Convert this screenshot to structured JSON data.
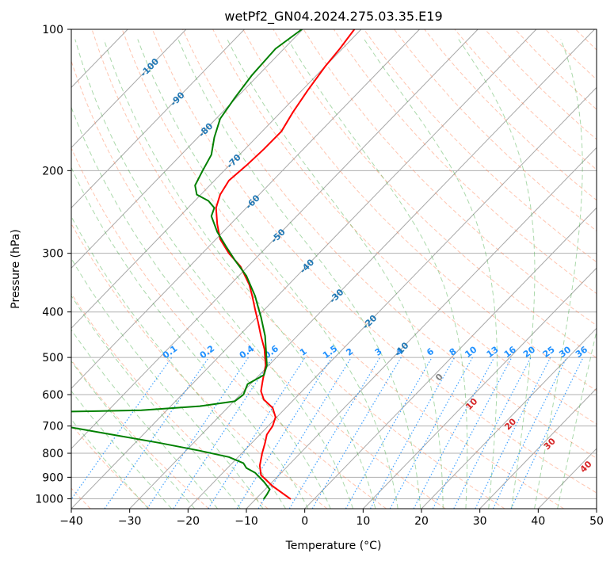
{
  "chart_data": {
    "type": "line",
    "title": "wetPf2_GN04.2024.275.03.35.E19",
    "xlabel": "Temperature (°C)",
    "ylabel": "Pressure (hPa)",
    "xlim": [
      -40,
      50
    ],
    "ylim": [
      1050,
      100
    ],
    "y_scale": "log",
    "grid": true,
    "x_ticks": [
      -40,
      -30,
      -20,
      -10,
      0,
      10,
      20,
      30,
      40,
      50
    ],
    "x_tick_labels": [
      "−40",
      "−30",
      "−20",
      "−10",
      "0",
      "10",
      "20",
      "30",
      "40",
      "50"
    ],
    "y_ticks": [
      1000,
      900,
      800,
      700,
      600,
      500,
      400,
      300,
      200,
      100
    ],
    "y_tick_labels": [
      "1000",
      "900",
      "800",
      "700",
      "600",
      "500",
      "400",
      "300",
      "200",
      "100"
    ],
    "series": [
      {
        "color": "#ff0000",
        "points": [
          [
            -2.5,
            1000
          ],
          [
            -5.5,
            940
          ],
          [
            -7.5,
            890
          ],
          [
            -7.7,
            850
          ],
          [
            -7.3,
            800
          ],
          [
            -6.8,
            760
          ],
          [
            -6.5,
            730
          ],
          [
            -5.5,
            700
          ],
          [
            -5.0,
            670
          ],
          [
            -5.5,
            640
          ],
          [
            -7.0,
            615
          ],
          [
            -7.5,
            590
          ],
          [
            -7.2,
            560
          ],
          [
            -6.7,
            520
          ],
          [
            -6.9,
            480
          ],
          [
            -7.5,
            450
          ],
          [
            -8.0,
            420
          ],
          [
            -8.5,
            395
          ],
          [
            -9.0,
            370
          ],
          [
            -9.5,
            350
          ],
          [
            -11.0,
            320
          ],
          [
            -13.0,
            300
          ],
          [
            -14.5,
            280
          ],
          [
            -15.0,
            260
          ],
          [
            -15.2,
            240
          ],
          [
            -14.5,
            225
          ],
          [
            -13.0,
            210
          ],
          [
            -10.0,
            195
          ],
          [
            -7.0,
            180
          ],
          [
            -4.0,
            165
          ],
          [
            -2.0,
            150
          ],
          [
            0.5,
            135
          ],
          [
            3.5,
            120
          ],
          [
            6.0,
            110
          ],
          [
            8.5,
            100
          ]
        ]
      },
      {
        "color": "#008000",
        "points": [
          [
            -7.0,
            1000
          ],
          [
            -6.5,
            980
          ],
          [
            -6.0,
            955
          ],
          [
            -7.0,
            920
          ],
          [
            -8.5,
            880
          ],
          [
            -10.0,
            860
          ],
          [
            -10.5,
            840
          ],
          [
            -13.0,
            815
          ],
          [
            -18.0,
            790
          ],
          [
            -25.0,
            760
          ],
          [
            -33.0,
            730
          ],
          [
            -38.0,
            712
          ],
          [
            -40.0,
            705
          ]
        ]
      },
      {
        "color": "#008000",
        "points": [
          [
            -40.0,
            652
          ],
          [
            -28.0,
            648
          ],
          [
            -18.0,
            635
          ],
          [
            -12.0,
            620
          ],
          [
            -10.5,
            600
          ],
          [
            -9.8,
            570
          ],
          [
            -7.0,
            545
          ],
          [
            -6.5,
            520
          ],
          [
            -6.6,
            490
          ],
          [
            -6.8,
            450
          ],
          [
            -7.5,
            410
          ],
          [
            -8.0,
            390
          ],
          [
            -8.5,
            370
          ],
          [
            -10.0,
            335
          ],
          [
            -12.0,
            310
          ],
          [
            -13.5,
            290
          ],
          [
            -15.0,
            270
          ],
          [
            -16.0,
            250
          ],
          [
            -15.5,
            240
          ],
          [
            -16.5,
            232
          ],
          [
            -18.5,
            225
          ],
          [
            -18.8,
            215
          ],
          [
            -17.5,
            200
          ],
          [
            -16.0,
            185
          ],
          [
            -15.5,
            170
          ],
          [
            -14.5,
            155
          ],
          [
            -12.0,
            140
          ],
          [
            -9.0,
            125
          ],
          [
            -5.0,
            110
          ],
          [
            -0.5,
            100
          ]
        ]
      }
    ],
    "dry_adiabat_labels": [
      "-100",
      "-90",
      "-80",
      "-70",
      "-60",
      "-50",
      "-40",
      "-30",
      "-20",
      "-10"
    ],
    "moist_adiabat_labels": [
      "0",
      "10",
      "20",
      "30",
      "40"
    ],
    "mixing_ratio_labels": [
      "0.1",
      "0.2",
      "0.4",
      "0.6",
      "1",
      "1.5",
      "2",
      "3",
      "4",
      "6",
      "8",
      "10",
      "13",
      "16",
      "20",
      "25",
      "30",
      "36"
    ],
    "colors": {
      "temperature": "#ff0000",
      "dewpoint": "#008000",
      "dry_adiabat_line": "#ff7f50",
      "moist_adiabat_line": "#2ca02c",
      "mixing_ratio_line": "#1e90ff",
      "isotherm": "#999999",
      "dry_label": "#1f77b4",
      "moist_label": "#d62728",
      "zero_label": "#808080"
    }
  }
}
